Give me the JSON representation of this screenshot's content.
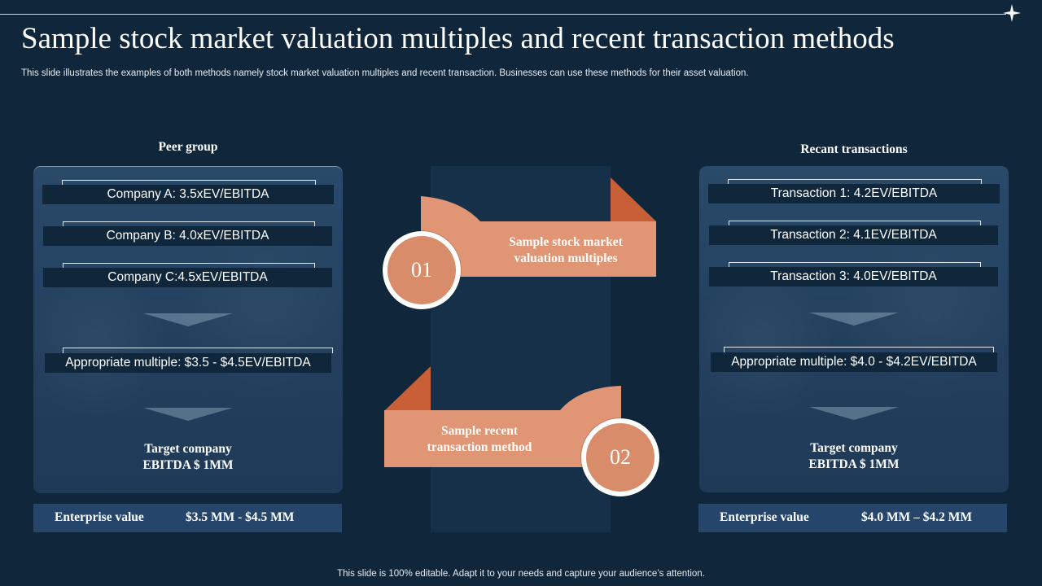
{
  "slide": {
    "title": "Sample stock market valuation multiples and recent transaction methods",
    "subtitle": "This slide illustrates the examples of both methods namely stock market valuation multiples and recent transaction. Businesses can use these methods for their asset valuation.",
    "footer": "This slide is 100% editable. Adapt it to your needs and capture your audience’s attention."
  },
  "left_panel": {
    "heading": "Peer group",
    "items": [
      "Company A: 3.5xEV/EBITDA",
      "Company B: 4.0xEV/EBITDA",
      "Company C:4.5xEV/EBITDA"
    ],
    "appropriate": "Appropriate multiple:  $3.5 - $4.5EV/EBITDA",
    "target_line1": "Target company",
    "target_line2": "EBITDA $ 1MM",
    "ev_label": "Enterprise value",
    "ev_value": "$3.5 MM  - $4.5 MM"
  },
  "right_panel": {
    "heading": "Recant transactions",
    "items": [
      "Transaction  1: 4.2EV/EBITDA",
      "Transaction  2: 4.1EV/EBITDA",
      "Transaction  3: 4.0EV/EBITDA"
    ],
    "appropriate": "Appropriate multiple:  $4.0 - $4.2EV/EBITDA",
    "target_line1": "Target company",
    "target_line2": "EBITDA $ 1MM",
    "ev_label": "Enterprise value",
    "ev_value": "$4.0  MM  – $4.2 MM"
  },
  "center": {
    "step1_number": "01",
    "step1_line1": "Sample stock market",
    "step1_line2": "valuation multiples",
    "step2_number": "02",
    "step2_line1": "Sample recent",
    "step2_line2": "transaction method"
  },
  "colors": {
    "background": "#10263a",
    "panel": "#25466a",
    "ribbon": "#e09574",
    "ribbon_fold": "#c95f36"
  },
  "icons": [
    "sparkle-star-icon",
    "chevron-down-icon"
  ]
}
